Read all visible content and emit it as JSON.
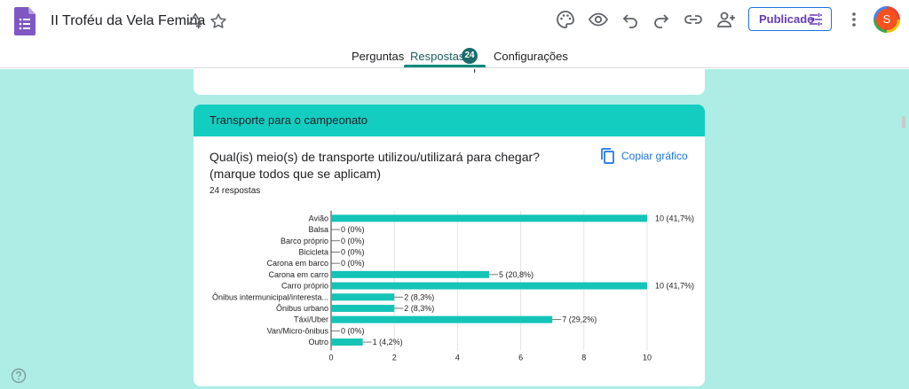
{
  "header": {
    "title": "II Troféu da Vela Femina",
    "publish_label": "Publicado",
    "avatar_letter": "S"
  },
  "tabs": {
    "questions": "Perguntas",
    "responses": "Respostas",
    "responses_count": "24",
    "settings": "Configurações"
  },
  "section": {
    "title": "Transporte para o campeonato"
  },
  "question": {
    "text": "Qual(is) meio(s) de transporte utilizou/utilizará para chegar? (marque todos que se aplicam)",
    "responses": "24 respostas",
    "copy_label": "Copiar gráfico"
  },
  "colors": {
    "bar": "#14c4b7",
    "accent": "#14cdc1",
    "background": "#aeece6"
  },
  "chart_data": {
    "type": "bar",
    "orientation": "horizontal",
    "categories": [
      "Avião",
      "Balsa",
      "Barco próprio",
      "Bicicleta",
      "Carona em barco",
      "Carona em carro",
      "Carro próprio",
      "Ônibus intermunicipal/interesta...",
      "Ônibus urbano",
      "Táxi/Uber",
      "Van/Micro-ônibus",
      "Outro"
    ],
    "values": [
      10,
      0,
      0,
      0,
      0,
      5,
      10,
      2,
      2,
      7,
      0,
      1
    ],
    "labels": [
      "10 (41,7%)",
      "0 (0%)",
      "0 (0%)",
      "0 (0%)",
      "0 (0%)",
      "5 (20,8%)",
      "10 (41,7%)",
      "2 (8,3%)",
      "2 (8,3%)",
      "7 (29,2%)",
      "0 (0%)",
      "1 (4,2%)"
    ],
    "xlim": [
      0,
      10
    ],
    "xticks": [
      0,
      2,
      4,
      6,
      8,
      10
    ]
  }
}
